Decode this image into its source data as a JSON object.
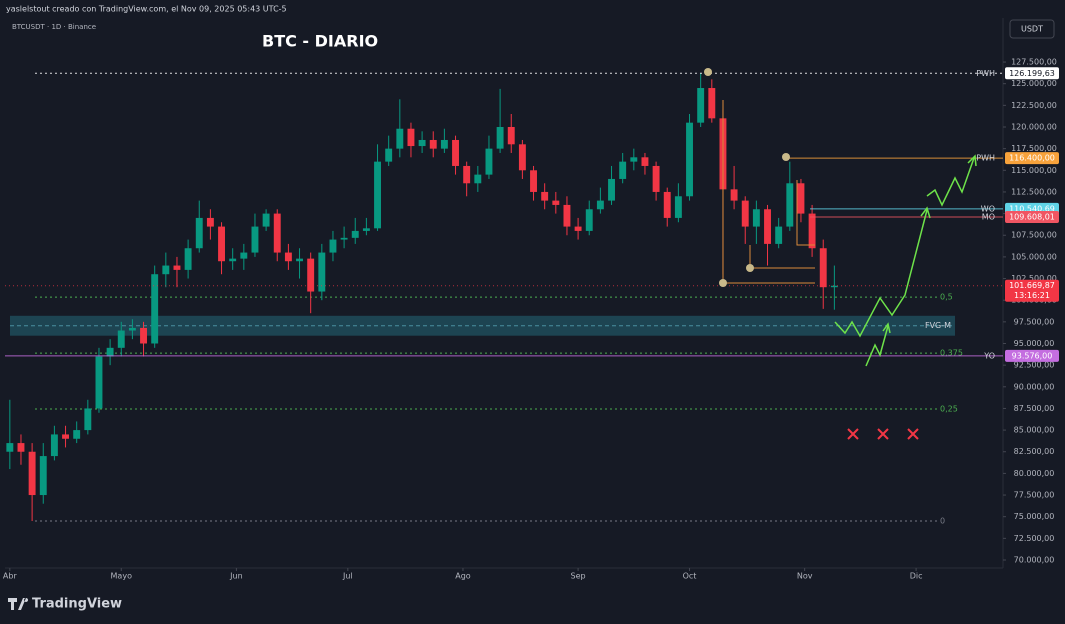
{
  "chart_data": {
    "type": "candlestick",
    "header": "yaslelstout creado con TradingView.com, el Nov 09, 2025 05:43 UTC-5",
    "symbol": "BTCUSDT · 1D · Binance",
    "title": "BTC - DIARIO",
    "currency": "USDT",
    "brand": "TradingView",
    "up_color": "#089981",
    "down_color": "#f23645",
    "x": [
      0,
      3,
      6,
      9,
      12,
      15,
      18,
      21,
      24,
      27,
      30,
      33,
      36,
      39,
      42,
      45,
      48,
      51,
      54,
      57,
      60,
      63,
      66,
      69,
      72,
      75,
      78,
      81,
      84,
      87,
      90,
      93,
      96,
      99,
      102,
      105,
      108,
      111,
      114,
      117,
      120,
      123,
      126,
      129,
      132,
      135,
      138,
      141,
      144,
      147,
      150,
      153,
      156,
      159,
      162,
      165,
      168,
      171,
      174,
      177,
      180,
      183,
      186,
      189,
      192,
      195,
      198,
      201,
      204,
      207,
      210,
      213,
      216,
      219,
      222
    ],
    "open": [
      82500,
      83500,
      82500,
      77500,
      82000,
      84500,
      84000,
      85000,
      87500,
      93500,
      94500,
      96500,
      96800,
      95000,
      103000,
      104000,
      103500,
      106000,
      109500,
      108500,
      104500,
      104800,
      105500,
      108500,
      110000,
      105500,
      104500,
      104800,
      101000,
      105500,
      107000,
      107200,
      108000,
      108300,
      116000,
      117500,
      119800,
      117800,
      118500,
      117500,
      118500,
      115500,
      113500,
      114500,
      117500,
      120000,
      118000,
      115000,
      112500,
      111500,
      111000,
      108500,
      108000,
      110500,
      111500,
      114000,
      116000,
      116500,
      115500,
      112500,
      109500,
      112000,
      120500,
      124500,
      121000,
      112800,
      111500,
      108500,
      110500,
      106500,
      108500,
      113500,
      110000,
      106000,
      101500
    ],
    "high": [
      88500,
      84500,
      83500,
      83500,
      85500,
      85500,
      86000,
      88500,
      94500,
      95500,
      97500,
      97800,
      97500,
      104000,
      105500,
      105000,
      107000,
      111500,
      110500,
      109000,
      106000,
      106500,
      110000,
      110500,
      110500,
      106500,
      106000,
      105500,
      106500,
      108000,
      108500,
      109500,
      109500,
      118000,
      119000,
      123200,
      120500,
      119500,
      119500,
      119800,
      119000,
      116000,
      115500,
      119000,
      124400,
      121500,
      118500,
      115500,
      113500,
      112500,
      112000,
      109500,
      111500,
      113000,
      115500,
      117000,
      117500,
      117000,
      116000,
      113000,
      113500,
      121500,
      126200,
      125500,
      122000,
      115500,
      112000,
      111500,
      111000,
      109500,
      116000,
      114000,
      111000,
      107000,
      104000
    ],
    "low": [
      80500,
      81000,
      74500,
      76500,
      81500,
      83000,
      83500,
      84500,
      87000,
      92500,
      93500,
      95500,
      93500,
      94500,
      101500,
      101500,
      102500,
      105500,
      107000,
      103000,
      103500,
      103500,
      105000,
      108000,
      104500,
      103500,
      102500,
      98500,
      100000,
      104500,
      106000,
      106500,
      107500,
      108000,
      115500,
      116500,
      116500,
      117000,
      116500,
      117000,
      114500,
      112000,
      112500,
      114000,
      117000,
      117000,
      114000,
      111500,
      110500,
      110000,
      107500,
      107000,
      107500,
      110000,
      111000,
      113500,
      115000,
      114500,
      111500,
      108500,
      109000,
      111500,
      120000,
      120500,
      103000,
      110500,
      106500,
      106500,
      104000,
      106000,
      108000,
      109000,
      105000,
      99000,
      98900
    ],
    "close": [
      83500,
      82500,
      77500,
      82000,
      84500,
      84000,
      85000,
      87500,
      93500,
      94500,
      96500,
      96800,
      95000,
      103000,
      104000,
      103500,
      106000,
      109500,
      108500,
      104500,
      104800,
      105500,
      108500,
      110000,
      105500,
      104500,
      104800,
      101000,
      105500,
      107000,
      107200,
      108000,
      108300,
      116000,
      117500,
      119800,
      117800,
      118500,
      117500,
      118500,
      115500,
      113500,
      114500,
      117500,
      120000,
      118000,
      115000,
      112500,
      111500,
      111000,
      108500,
      108000,
      110500,
      111500,
      114000,
      116000,
      116500,
      115500,
      112500,
      109500,
      112000,
      120500,
      124500,
      121000,
      112800,
      111500,
      108500,
      110500,
      106500,
      108500,
      113500,
      110000,
      106000,
      101500,
      101669.87
    ],
    "xlim": [
      -1.3,
      267.4
    ],
    "xticks": [
      {
        "value": 0,
        "label": "Abr"
      },
      {
        "value": 30,
        "label": "Mayo"
      },
      {
        "value": 61,
        "label": "Jun"
      },
      {
        "value": 91,
        "label": "Jul"
      },
      {
        "value": 122,
        "label": "Ago"
      },
      {
        "value": 153,
        "label": "Sep"
      },
      {
        "value": 183,
        "label": "Oct"
      },
      {
        "value": 214,
        "label": "Nov"
      },
      {
        "value": 244,
        "label": "Dic"
      }
    ],
    "ylim": [
      69076,
      131200
    ],
    "yticks": [
      {
        "value": 70000,
        "label": "70.000,00"
      },
      {
        "value": 72500,
        "label": "72.500,00"
      },
      {
        "value": 75000,
        "label": "75.000,00"
      },
      {
        "value": 77500,
        "label": "77.500,00"
      },
      {
        "value": 80000,
        "label": "80.000,00"
      },
      {
        "value": 82500,
        "label": "82.500,00"
      },
      {
        "value": 85000,
        "label": "85.000,00"
      },
      {
        "value": 87500,
        "label": "87.500,00"
      },
      {
        "value": 90000,
        "label": "90.000,00"
      },
      {
        "value": 92500,
        "label": "92.500,00"
      },
      {
        "value": 95000,
        "label": "95.000,00"
      },
      {
        "value": 97500,
        "label": "97.500,00"
      },
      {
        "value": 100000,
        "label": "100.000,00"
      },
      {
        "value": 102500,
        "label": "102.500,00"
      },
      {
        "value": 105000,
        "label": "105.000,00"
      },
      {
        "value": 107500,
        "label": "107.500,00"
      },
      {
        "value": 110000,
        "label": "110.000,00"
      },
      {
        "value": 112500,
        "label": "112.500,00"
      },
      {
        "value": 115000,
        "label": "115.000,00"
      },
      {
        "value": 117500,
        "label": "117.500,00"
      },
      {
        "value": 120000,
        "label": "120.000,00"
      },
      {
        "value": 122500,
        "label": "122.500,00"
      },
      {
        "value": 125000,
        "label": "125.000,00"
      },
      {
        "value": 127500,
        "label": "127.500,00"
      }
    ],
    "grid": false,
    "levels": [
      {
        "name": "PWH",
        "value": 126199.63,
        "label": "126.199,63",
        "color": "#ffffff"
      },
      {
        "name": "PWH",
        "value": 116400,
        "label": "116.400,00",
        "color": "#f7a23b"
      },
      {
        "name": "WO",
        "value": 110540.69,
        "label": "110.540,69",
        "color": "#5fd3e6"
      },
      {
        "name": "MO",
        "value": 109608.01,
        "label": "109.608,01",
        "color": "#f05562"
      },
      {
        "name": "YO",
        "value": 93576,
        "label": "93.576,00",
        "color": "#c46ee0"
      }
    ],
    "last_price": {
      "value": 101669.87,
      "label": "101.669,87",
      "countdown": "13:16:21",
      "color": "#f23645"
    },
    "fib": {
      "low": 74508,
      "high": 126199.63,
      "color": "#4caf50",
      "levels": [
        {
          "value": 0.5,
          "label": "0,5"
        },
        {
          "value": 0.375,
          "label": "0,375"
        },
        {
          "value": 0.25,
          "label": "0,25"
        },
        0
      ]
    },
    "zone": {
      "label": "FVG-M",
      "top": 98200,
      "bottom": 95900,
      "color": "#1f4f5e"
    }
  }
}
